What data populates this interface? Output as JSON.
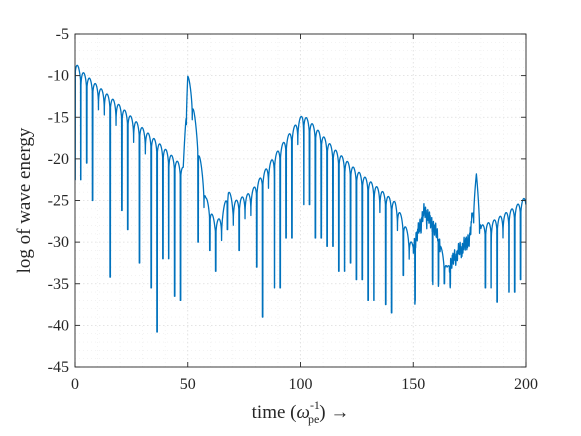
{
  "chart_data": {
    "type": "line",
    "title": "",
    "xlabel": "time (ω_pe^-1) →",
    "xlabel_parts": {
      "prefix": "time (",
      "symbol": "ω",
      "sub": "pe",
      "sup": "-1",
      "suffix": ") →"
    },
    "ylabel": "log of wave energy",
    "xlim": [
      0,
      200
    ],
    "ylim": [
      -45,
      -5
    ],
    "xticks": [
      0,
      50,
      100,
      150,
      200
    ],
    "yticks": [
      -5,
      -10,
      -15,
      -20,
      -25,
      -30,
      -35,
      -40,
      -45
    ],
    "grid": true,
    "minor_grid": true,
    "line_color": "#0072BD",
    "series": [
      {
        "values_description_only_in_envelope": true,
        "envelope": [
          [
            0,
            -8.2
          ],
          [
            2,
            -9.2
          ],
          [
            10,
            -11.2
          ],
          [
            20,
            -13.6
          ],
          [
            30,
            -16.3
          ],
          [
            40,
            -18.8
          ],
          [
            48,
            -21.0
          ],
          [
            50,
            -9.7
          ],
          [
            52,
            -12.5
          ],
          [
            55,
            -19.0
          ],
          [
            58,
            -24.5
          ],
          [
            62,
            -27.5
          ],
          [
            65,
            -27.0
          ],
          [
            68,
            -23.5
          ],
          [
            70,
            -25.2
          ],
          [
            78,
            -24.0
          ],
          [
            88,
            -19.8
          ],
          [
            95,
            -17.0
          ],
          [
            101,
            -14.6
          ],
          [
            106,
            -16.0
          ],
          [
            115,
            -18.8
          ],
          [
            125,
            -21.4
          ],
          [
            135,
            -23.6
          ],
          [
            142,
            -25.2
          ],
          [
            145,
            -27.0
          ],
          [
            150,
            -30.5
          ],
          [
            155,
            -26.0
          ],
          [
            160,
            -28.5
          ],
          [
            165,
            -33.0
          ],
          [
            170,
            -31.0
          ],
          [
            175,
            -29.5
          ],
          [
            178,
            -21.8
          ],
          [
            180,
            -28.0
          ],
          [
            185,
            -27.5
          ],
          [
            195,
            -25.8
          ],
          [
            200,
            -24.5
          ]
        ],
        "deep_dips": [
          [
            1,
            -22.5
          ],
          [
            5,
            -20.5
          ],
          [
            8,
            -25.0
          ],
          [
            15,
            -34.2
          ],
          [
            20,
            -26.2
          ],
          [
            24,
            -28.5
          ],
          [
            29,
            -32.5
          ],
          [
            33,
            -35.5
          ],
          [
            36.5,
            -40.8
          ],
          [
            40,
            -32.0
          ],
          [
            45,
            -36.5
          ],
          [
            47,
            -37.0
          ],
          [
            55,
            -30.0
          ],
          [
            60,
            -31.0
          ],
          [
            63,
            -33.5
          ],
          [
            67,
            -28.5
          ],
          [
            73,
            -31.0
          ],
          [
            80,
            -33.0
          ],
          [
            84,
            -39.0
          ],
          [
            90,
            -35.5
          ],
          [
            95,
            -29.5
          ],
          [
            103,
            -25.5
          ],
          [
            108,
            -29.5
          ],
          [
            113,
            -30.5
          ],
          [
            118,
            -33.5
          ],
          [
            122,
            -32.5
          ],
          [
            126,
            -34.5
          ],
          [
            131,
            -37.0
          ],
          [
            137,
            -37.5
          ],
          [
            140,
            -38.5
          ],
          [
            145,
            -34.0
          ],
          [
            150,
            -37.0
          ],
          [
            160,
            -34.5
          ],
          [
            165,
            -35.0
          ],
          [
            175,
            -30.0
          ],
          [
            183,
            -35.5
          ],
          [
            187,
            -37.2
          ],
          [
            194,
            -36.0
          ],
          [
            197,
            -34.5
          ],
          [
            200,
            -34.5
          ]
        ]
      }
    ]
  }
}
